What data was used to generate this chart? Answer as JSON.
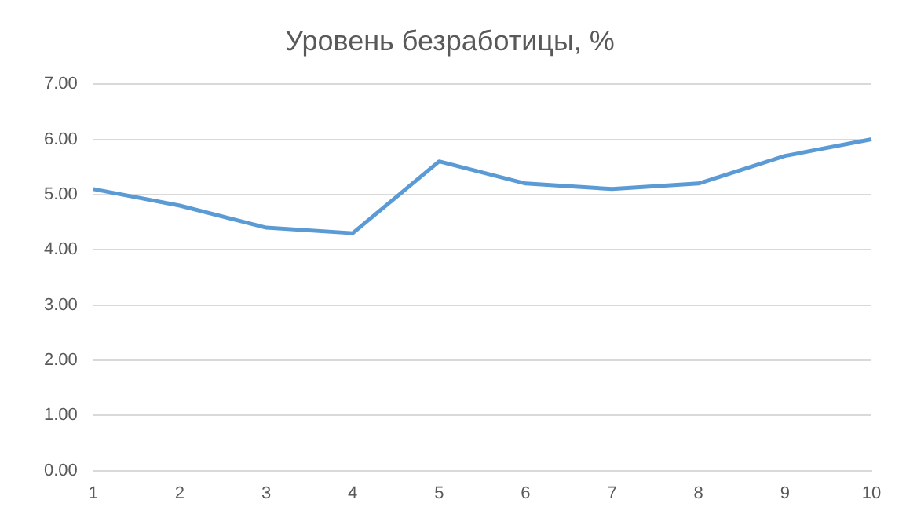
{
  "chart_data": {
    "type": "line",
    "title": "Уровень безработицы, %",
    "categories": [
      "1",
      "2",
      "3",
      "4",
      "5",
      "6",
      "7",
      "8",
      "9",
      "10"
    ],
    "series": [
      {
        "color": "#5b9bd5",
        "values": [
          5.1,
          4.8,
          4.4,
          4.3,
          5.6,
          5.2,
          5.1,
          5.2,
          5.7,
          6.0
        ]
      }
    ],
    "ylim": [
      0,
      7
    ],
    "yticks": [
      {
        "value": 0,
        "label": "0.00"
      },
      {
        "value": 1,
        "label": "1.00"
      },
      {
        "value": 2,
        "label": "2.00"
      },
      {
        "value": 3,
        "label": "3.00"
      },
      {
        "value": 4,
        "label": "4.00"
      },
      {
        "value": 5,
        "label": "5.00"
      },
      {
        "value": 6,
        "label": "6.00"
      },
      {
        "value": 7,
        "label": "7.00"
      }
    ],
    "grid": "y",
    "legend": false,
    "marker": "none"
  }
}
